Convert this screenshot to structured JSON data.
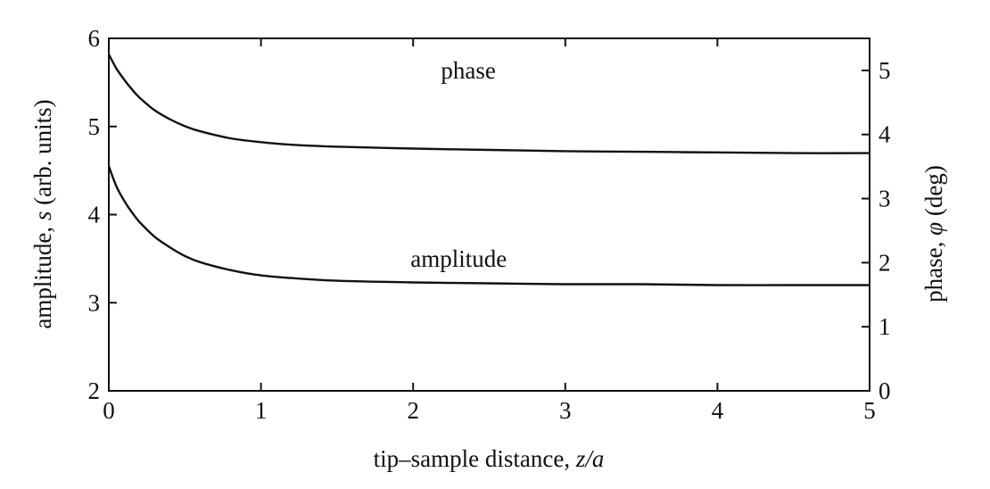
{
  "chart_data": {
    "type": "line",
    "title": "",
    "xlabel": {
      "prefix": "tip–sample distance, ",
      "italic": "z/a"
    },
    "ylabel_left": {
      "prefix": "amplitude, ",
      "italic": "s",
      "suffix": " (arb. units)"
    },
    "ylabel_right": {
      "prefix": "phase, ",
      "italic": "φ",
      "suffix": " (deg)"
    },
    "xlim": [
      0,
      5
    ],
    "ylim_left": [
      2,
      6
    ],
    "ylim_right": [
      0,
      5.5
    ],
    "xticks": [
      0,
      1,
      2,
      3,
      4,
      5
    ],
    "yticks_left": [
      2,
      3,
      4,
      5,
      6
    ],
    "yticks_right": [
      0,
      1,
      2,
      3,
      4,
      5
    ],
    "grid": false,
    "series": [
      {
        "name": "phase",
        "axis": "right",
        "label_at": [
          2.3,
          5.0
        ],
        "x": [
          0,
          0.05,
          0.1,
          0.15,
          0.2,
          0.3,
          0.4,
          0.5,
          0.6,
          0.8,
          1.0,
          1.2,
          1.5,
          2.0,
          2.5,
          3.0,
          3.5,
          4.0,
          4.5,
          5.0
        ],
        "y": [
          5.25,
          5.03,
          4.86,
          4.71,
          4.58,
          4.38,
          4.24,
          4.13,
          4.05,
          3.94,
          3.88,
          3.84,
          3.81,
          3.78,
          3.76,
          3.74,
          3.73,
          3.72,
          3.71,
          3.71
        ]
      },
      {
        "name": "amplitude",
        "axis": "left",
        "label_at": [
          2.1,
          3.5
        ],
        "x": [
          0,
          0.05,
          0.1,
          0.15,
          0.2,
          0.3,
          0.4,
          0.5,
          0.6,
          0.8,
          1.0,
          1.2,
          1.5,
          2.0,
          2.5,
          3.0,
          3.5,
          4.0,
          4.5,
          5.0
        ],
        "y": [
          4.55,
          4.32,
          4.16,
          4.03,
          3.92,
          3.75,
          3.63,
          3.53,
          3.46,
          3.37,
          3.31,
          3.28,
          3.25,
          3.23,
          3.22,
          3.21,
          3.21,
          3.2,
          3.2,
          3.2
        ]
      }
    ]
  }
}
